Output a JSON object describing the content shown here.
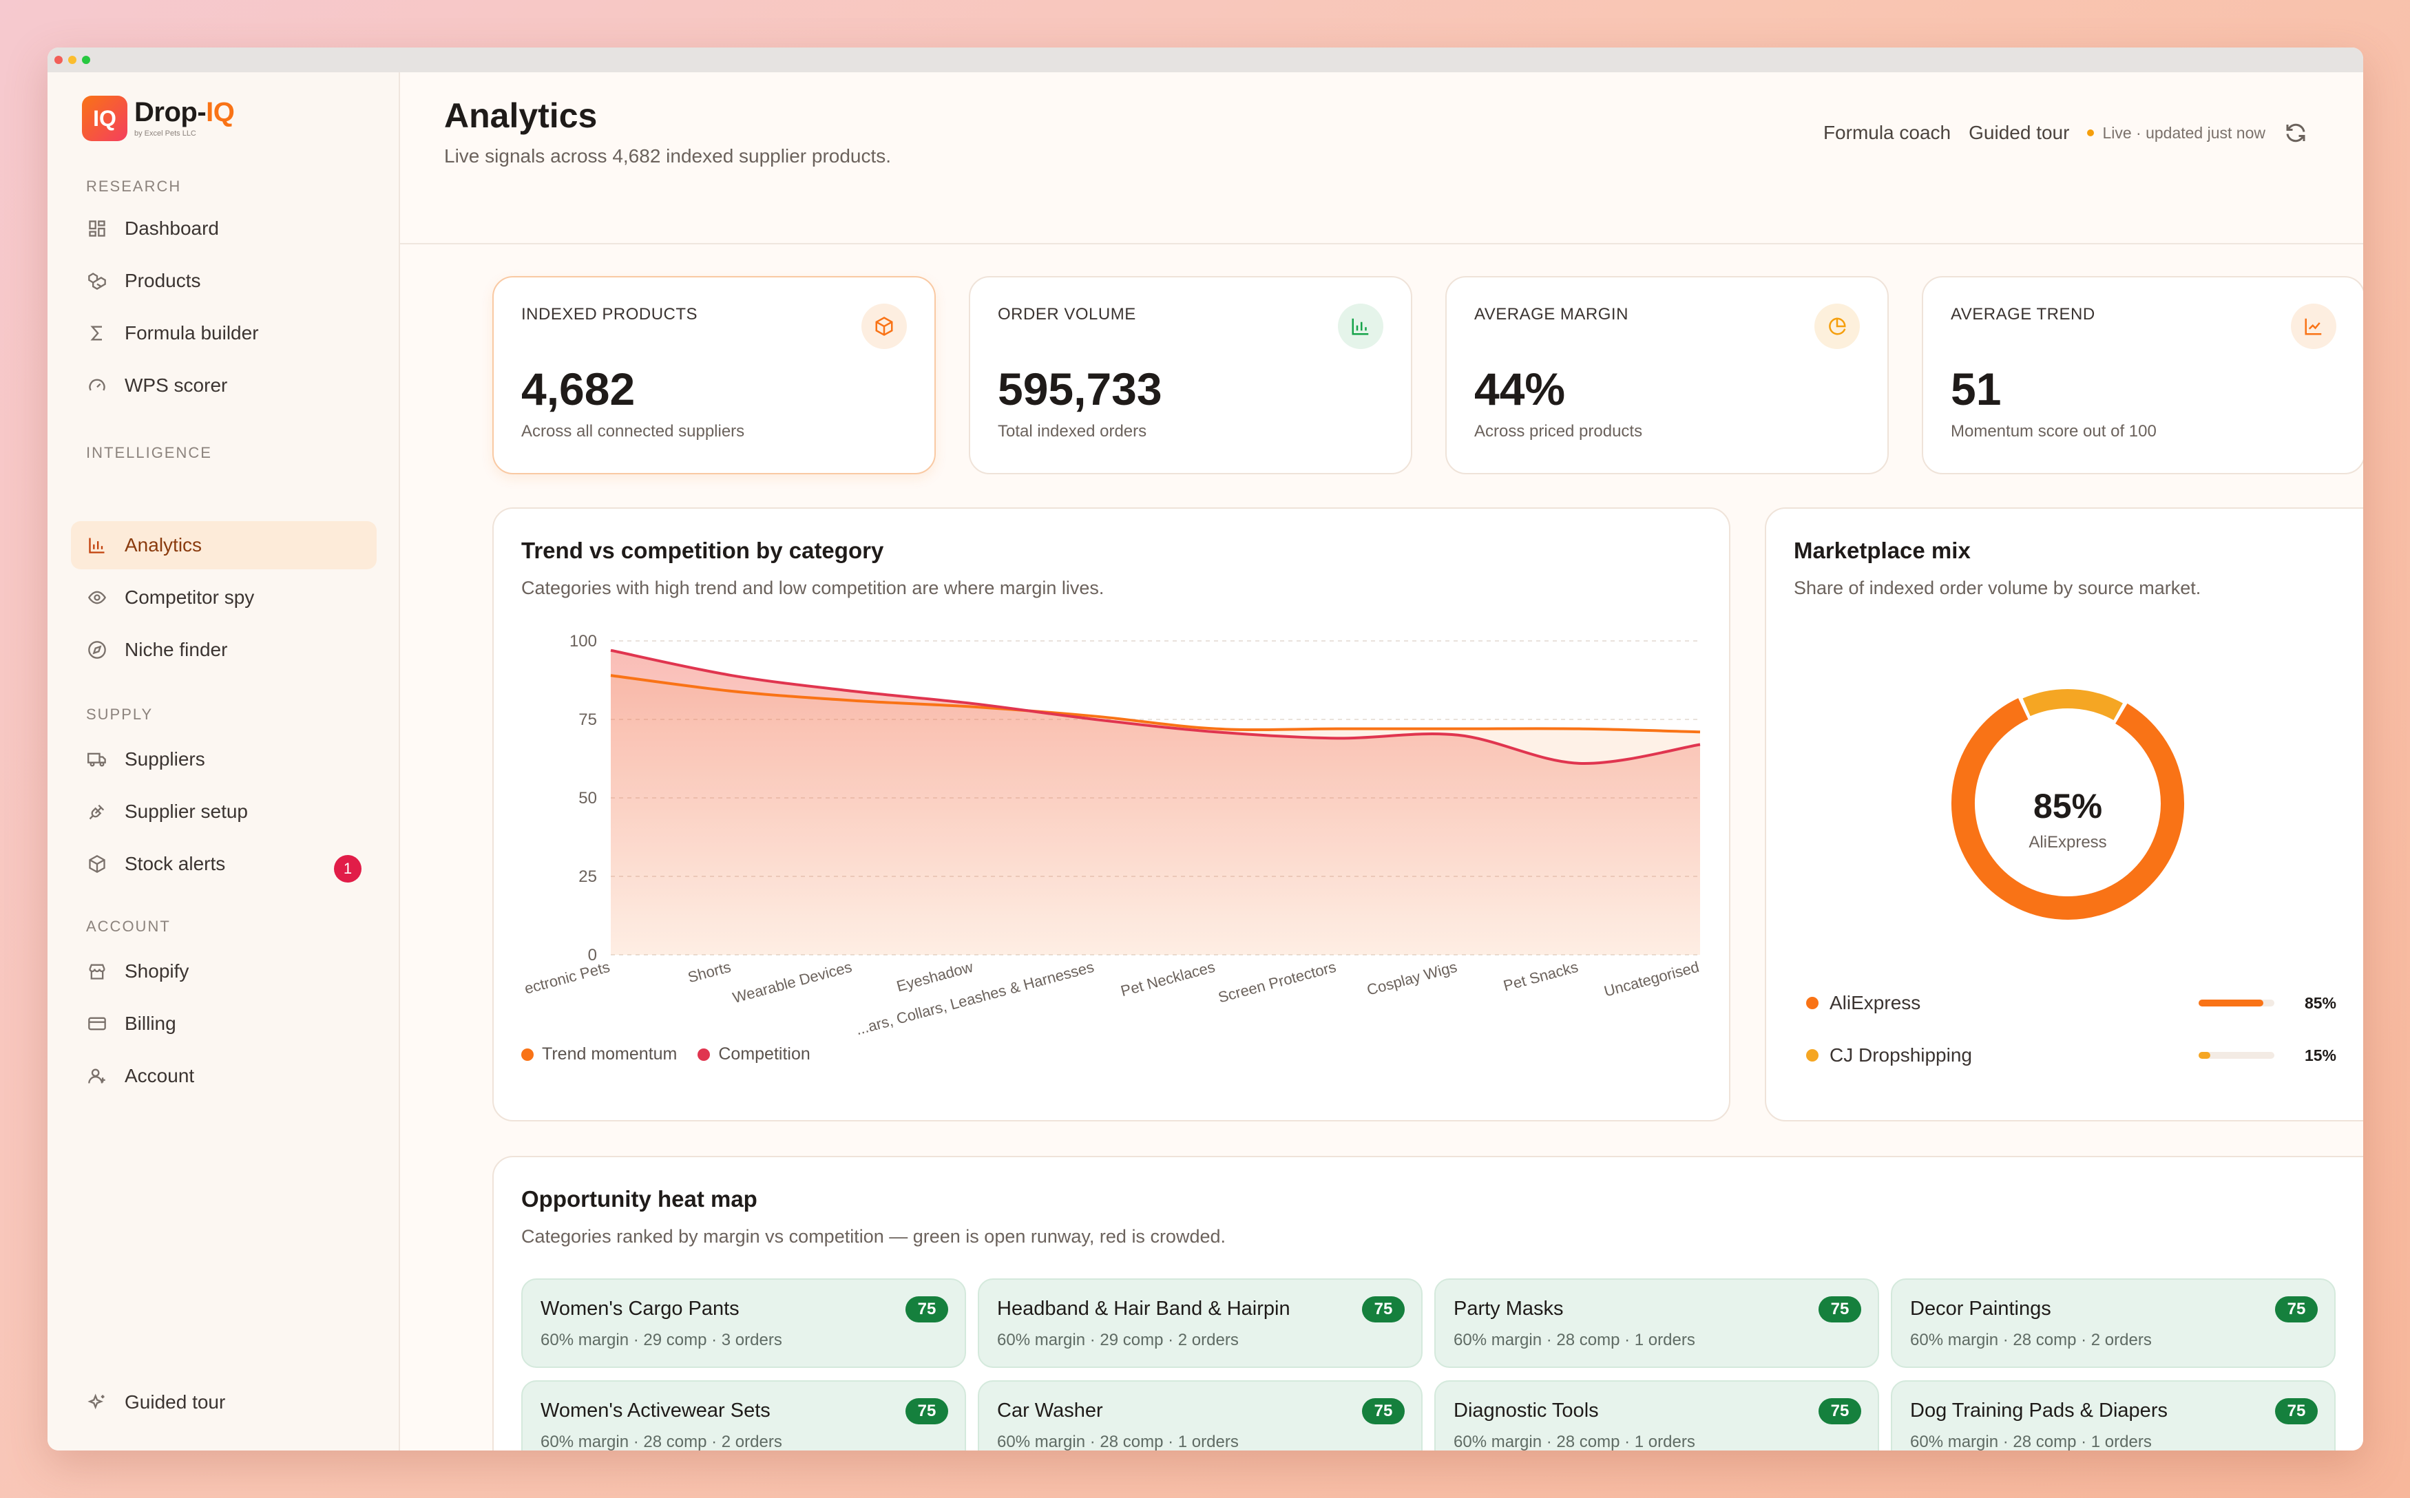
{
  "brand": {
    "name_prefix": "Drop-",
    "name_suffix": "IQ",
    "badge": "IQ",
    "tagline": "by Excel Pets LLC"
  },
  "sidebar": {
    "sections": [
      {
        "title": "RESEARCH",
        "items": [
          {
            "label": "Dashboard",
            "icon": "grid-icon"
          },
          {
            "label": "Products",
            "icon": "boxes-icon"
          },
          {
            "label": "Formula builder",
            "icon": "sigma-icon"
          },
          {
            "label": "WPS scorer",
            "icon": "gauge-icon"
          }
        ]
      },
      {
        "title": "INTELLIGENCE",
        "items": [
          {
            "label": "Analytics",
            "icon": "bar-chart-icon",
            "active": true
          },
          {
            "label": "Competitor spy",
            "icon": "eye-icon"
          },
          {
            "label": "Niche finder",
            "icon": "compass-icon"
          }
        ]
      },
      {
        "title": "SUPPLY",
        "items": [
          {
            "label": "Suppliers",
            "icon": "truck-icon"
          },
          {
            "label": "Supplier setup",
            "icon": "plug-icon"
          },
          {
            "label": "Stock alerts",
            "icon": "package-icon",
            "badge": "1"
          }
        ]
      },
      {
        "title": "ACCOUNT",
        "items": [
          {
            "label": "Shopify",
            "icon": "store-icon"
          },
          {
            "label": "Billing",
            "icon": "credit-card-icon"
          },
          {
            "label": "Account",
            "icon": "user-icon"
          }
        ]
      }
    ],
    "footer": {
      "label": "Guided tour",
      "icon": "sparkles-icon"
    }
  },
  "header": {
    "title": "Analytics",
    "subtitle": "Live signals across 4,682 indexed supplier products.",
    "actions": {
      "coach": "Formula coach",
      "tour": "Guided tour",
      "live": "Live · updated just now"
    }
  },
  "stats": [
    {
      "label": "INDEXED PRODUCTS",
      "value": "4,682",
      "caption": "Across all connected suppliers",
      "icon": "cube-icon",
      "color": "#f97316"
    },
    {
      "label": "ORDER VOLUME",
      "value": "595,733",
      "caption": "Total indexed orders",
      "icon": "bar-chart-icon",
      "color": "#16a34a"
    },
    {
      "label": "AVERAGE MARGIN",
      "value": "44%",
      "caption": "Across priced products",
      "icon": "pie-chart-icon",
      "color": "#f59e0b"
    },
    {
      "label": "AVERAGE TREND",
      "value": "51",
      "caption": "Momentum score out of 100",
      "icon": "trend-up-icon",
      "color": "#f97316"
    }
  ],
  "trend_card": {
    "title": "Trend vs competition by category",
    "subtitle": "Categories with high trend and low competition are where margin lives."
  },
  "mix_card": {
    "title": "Marketplace mix",
    "subtitle": "Share of indexed order volume by source market.",
    "center_value": "85%",
    "center_label": "AliExpress",
    "rows": [
      {
        "label": "AliExpress",
        "pct_text": "85%",
        "fraction": 0.85,
        "color": "#f97316"
      },
      {
        "label": "CJ Dropshipping",
        "pct_text": "15%",
        "fraction": 0.15,
        "color": "#f5a623"
      }
    ]
  },
  "heatmap": {
    "title": "Opportunity heat map",
    "subtitle": "Categories ranked by margin vs competition — green is open runway, red is crowded.",
    "tiles": [
      {
        "name": "Women's Cargo Pants",
        "meta": "60% margin · 29 comp · 3 orders",
        "score": "75"
      },
      {
        "name": "Headband & Hair Band & Hairpin",
        "meta": "60% margin · 29 comp · 2 orders",
        "score": "75"
      },
      {
        "name": "Party Masks",
        "meta": "60% margin · 28 comp · 1 orders",
        "score": "75"
      },
      {
        "name": "Decor Paintings",
        "meta": "60% margin · 28 comp · 2 orders",
        "score": "75"
      },
      {
        "name": "Women's Activewear Sets",
        "meta": "60% margin · 28 comp · 2 orders",
        "score": "75"
      },
      {
        "name": "Car Washer",
        "meta": "60% margin · 28 comp · 1 orders",
        "score": "75"
      },
      {
        "name": "Diagnostic Tools",
        "meta": "60% margin · 28 comp · 1 orders",
        "score": "75"
      },
      {
        "name": "Dog Training Pads & Diapers",
        "meta": "60% margin · 28 comp · 1 orders",
        "score": "75"
      }
    ]
  },
  "chart_data": {
    "type": "area",
    "categories": [
      "Electronic Pets",
      "Shorts",
      "Wearable Devices",
      "Eyeshadow",
      "Pet Collars, Leashes & Harnesses",
      "Pet Necklaces",
      "Screen Protectors",
      "Cosplay Wigs",
      "Pet Snacks",
      "Uncategorised"
    ],
    "category_labels": [
      "ectronic Pets",
      "Shorts",
      "Wearable Devices",
      "Eyeshadow",
      "...ars, Collars, Leashes & Harnesses",
      "Pet Necklaces",
      "Screen Protectors",
      "Cosplay Wigs",
      "Pet Snacks",
      "Uncategorised"
    ],
    "series": [
      {
        "name": "Trend momentum",
        "color": "#f97316",
        "values": [
          89,
          84,
          81,
          79,
          76,
          72,
          72,
          72,
          72,
          71
        ]
      },
      {
        "name": "Competition",
        "color": "#e0354f",
        "values": [
          97,
          89,
          84,
          80,
          75,
          71,
          69,
          70,
          61,
          67
        ]
      }
    ],
    "yticks": [
      0,
      25,
      50,
      75,
      100
    ],
    "ylim": [
      0,
      100
    ],
    "grid": true,
    "legend": "bottom-left"
  }
}
